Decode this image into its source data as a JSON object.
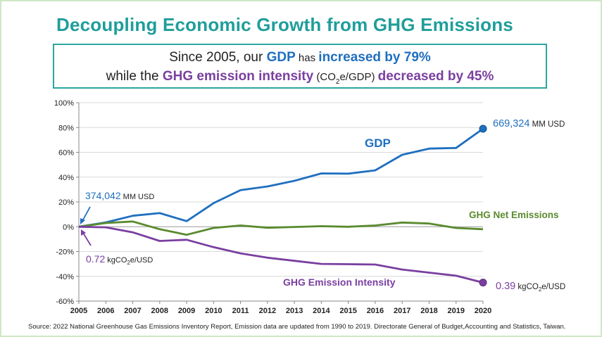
{
  "title": "Decoupling Economic Growth from GHG Emissions",
  "headline": {
    "line1_a": "Since 2005, our ",
    "line1_gdp": "GDP",
    "line1_has": " has ",
    "line1_inc": "increased by 79%",
    "line2_a": "while the ",
    "line2_ghg": "GHG emission intensity",
    "line2_paren_a": " (CO",
    "line2_paren_sub": "2",
    "line2_paren_b": "e/GDP) ",
    "line2_dec": "decreased by 45%"
  },
  "source": "Source: 2022 National Greenhouse Gas Emissions Inventory Report, Emission data are updated from 1990 to 2019.  Directorate General of Budget,Accounting and Statistics, Taiwan.",
  "chart_data": {
    "type": "line",
    "x": [
      "2005",
      "2006",
      "2007",
      "2008",
      "2009",
      "2010",
      "2011",
      "2012",
      "2013",
      "2014",
      "2015",
      "2016",
      "2017",
      "2018",
      "2019",
      "2020"
    ],
    "ylim": [
      -60,
      100
    ],
    "yticks": [
      -60,
      -40,
      -20,
      0,
      20,
      40,
      60,
      80,
      100
    ],
    "ytick_labels": [
      "-60%",
      "-40%",
      "-20%",
      "0%",
      "20%",
      "40%",
      "60%",
      "80%",
      "100%"
    ],
    "grid": true,
    "series": [
      {
        "name": "GDP",
        "color": "#1f6fbf",
        "values": [
          0,
          3.5,
          8.8,
          11.0,
          4.5,
          19.0,
          29.5,
          32.5,
          37.0,
          43.0,
          42.8,
          45.5,
          58.0,
          63.0,
          63.5,
          79.0
        ]
      },
      {
        "name": "GHG Net Emissions",
        "color": "#5a8a2e",
        "values": [
          0,
          3.0,
          4.2,
          -2.0,
          -6.5,
          -1.0,
          1.0,
          -0.8,
          -0.2,
          0.4,
          0.0,
          1.0,
          3.4,
          2.6,
          -1.0,
          -2.0
        ]
      },
      {
        "name": "GHG Emission Intensity",
        "color": "#7a3fa0",
        "values": [
          0,
          -0.5,
          -4.5,
          -11.5,
          -10.5,
          -16.5,
          -21.5,
          -25.0,
          -27.5,
          -30.0,
          -30.2,
          -30.5,
          -34.5,
          -37.0,
          -39.5,
          -45.0
        ]
      }
    ],
    "labels": {
      "gdp": "GDP",
      "net": "GHG Net Emissions",
      "intensity": "GHG Emission Intensity",
      "gdp_start_value": "374,042",
      "gdp_start_unit": " MM USD",
      "gdp_end_value": "669,324",
      "gdp_end_unit": " MM USD",
      "int_start_value": "0.72",
      "int_start_unit_a": " kgCO",
      "int_start_unit_sub": "2",
      "int_start_unit_b": "e/USD",
      "int_end_value": "0.39",
      "int_end_unit_a": " kgCO",
      "int_end_unit_sub": "2",
      "int_end_unit_b": "e/USD"
    }
  }
}
